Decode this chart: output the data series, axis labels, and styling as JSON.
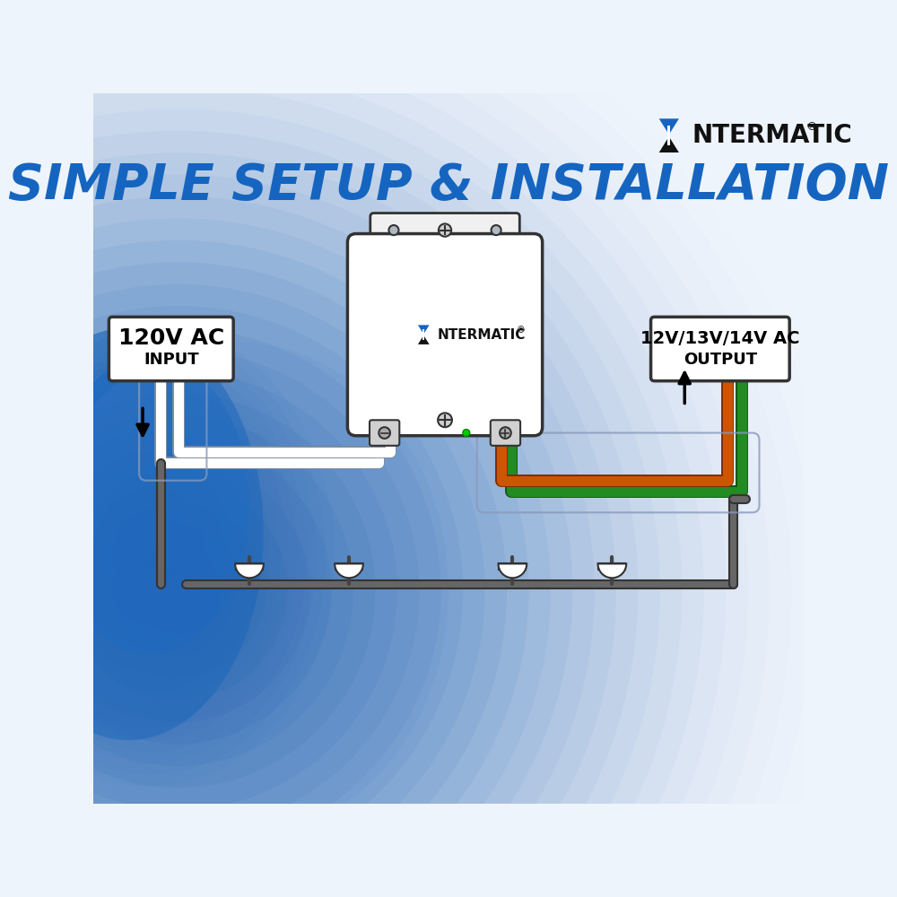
{
  "title": "SIMPLE SETUP & INSTALLATION",
  "title_color": "#1565C0",
  "title_fontsize": 40,
  "input_label_line1": "120V AC",
  "input_label_line2": "INPUT",
  "output_label_line1": "12V/13V/14V AC",
  "output_label_line2": "OUTPUT",
  "wire_orange": "#CC5500",
  "wire_green": "#228B22",
  "wire_gray": "#555555",
  "transformer_fill": "#ffffff",
  "transformer_stroke": "#333333",
  "logo_blue": "#1565C0",
  "logo_black": "#111111",
  "bg_color": "#e8f0f8",
  "blue_spot_color": "#1a5db0",
  "bracket_fill": "#f0f0f0",
  "terminal_fill": "#d0d0d0"
}
